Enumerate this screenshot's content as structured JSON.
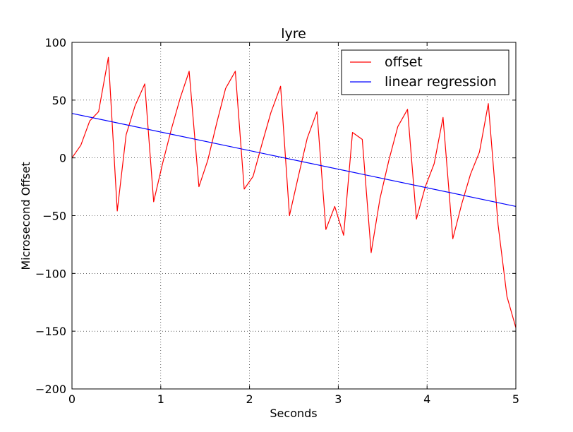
{
  "chart_data": {
    "type": "line",
    "title": "lyre",
    "xlabel": "Seconds",
    "ylabel": "Microsecond Offset",
    "xlim": [
      0,
      5
    ],
    "ylim": [
      -200,
      100
    ],
    "xticks": [
      0,
      1,
      2,
      3,
      4,
      5
    ],
    "yticks": [
      -200,
      -150,
      -100,
      -50,
      0,
      50,
      100
    ],
    "grid": true,
    "legend_position": "top-right",
    "series": [
      {
        "name": "offset",
        "color": "#ff0000",
        "x": [
          0,
          0.1,
          0.2,
          0.3,
          0.41,
          0.51,
          0.61,
          0.71,
          0.82,
          0.92,
          1.02,
          1.12,
          1.22,
          1.32,
          1.43,
          1.53,
          1.63,
          1.73,
          1.84,
          1.94,
          2.04,
          2.14,
          2.24,
          2.35,
          2.45,
          2.55,
          2.65,
          2.76,
          2.86,
          2.96,
          3.06,
          3.16,
          3.27,
          3.37,
          3.47,
          3.57,
          3.67,
          3.78,
          3.88,
          3.98,
          4.08,
          4.18,
          4.29,
          4.39,
          4.49,
          4.59,
          4.69,
          4.8,
          4.9,
          5.0
        ],
        "y": [
          0,
          11,
          32,
          40,
          87,
          -46,
          20,
          45,
          64,
          -38,
          -5,
          25,
          52,
          75,
          -25,
          -2,
          30,
          60,
          75,
          -27,
          -16,
          12,
          39,
          62,
          -50,
          -16,
          17,
          40,
          -62,
          -42,
          -67,
          22,
          16,
          -82,
          -35,
          -2,
          27,
          42,
          -53,
          -25,
          -5,
          35,
          -70,
          -40,
          -14,
          5,
          47,
          -58,
          -120,
          -147
        ]
      },
      {
        "name": "linear regression",
        "color": "#0000ff",
        "x": [
          0,
          5
        ],
        "y": [
          38.5,
          -42
        ]
      }
    ]
  }
}
